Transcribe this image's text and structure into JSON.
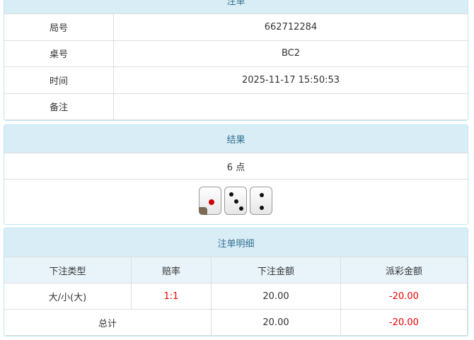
{
  "order": {
    "title": "注单",
    "rows": [
      {
        "label": "局号",
        "value": "662712284"
      },
      {
        "label": "桌号",
        "value": "BC2"
      },
      {
        "label": "时间",
        "value": "2025-11-17 15:50:53"
      },
      {
        "label": "备注"
      }
    ]
  },
  "result": {
    "title": "结果",
    "points": "6 点",
    "dice": [
      1,
      3,
      2
    ]
  },
  "detail": {
    "title": "注单明细",
    "columns": [
      "下注类型",
      "赔率",
      "下注金额",
      "派彩金额"
    ],
    "rows": [
      [
        "大/小(大)",
        "1:1",
        "20.00",
        "-20.00"
      ]
    ],
    "total": {
      "label": "总计",
      "bet": "20.00",
      "payout": "-20.00"
    }
  }
}
